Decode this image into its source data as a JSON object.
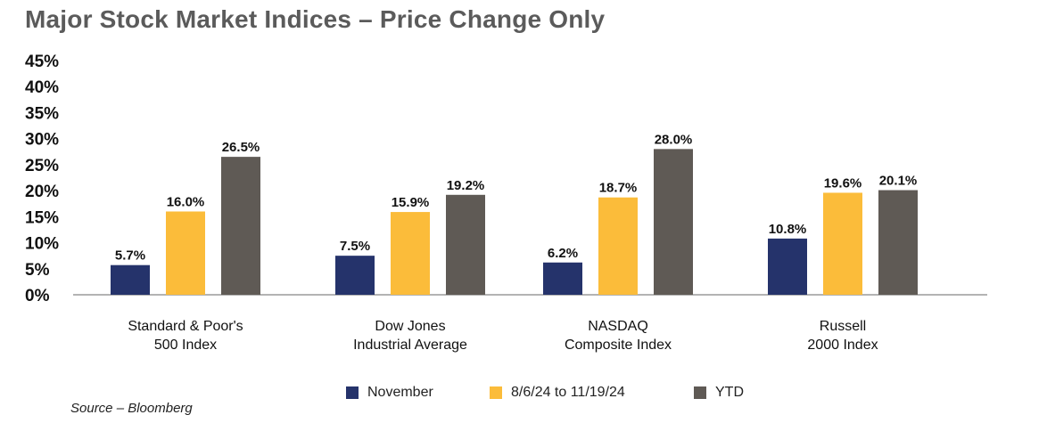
{
  "chart_data": {
    "type": "bar",
    "title": "Major Stock Market Indices – Price Change Only",
    "categories": [
      [
        "Standard & Poor's",
        "500 Index"
      ],
      [
        "Dow Jones",
        "Industrial Average"
      ],
      [
        "NASDAQ",
        "Composite Index"
      ],
      [
        "Russell",
        "2000 Index"
      ]
    ],
    "series": [
      {
        "name": "November",
        "color": "#25336b",
        "values": [
          5.7,
          7.5,
          6.2,
          10.8
        ],
        "labels": [
          "5.7%",
          "7.5%",
          "6.2%",
          "10.8%"
        ]
      },
      {
        "name": "8/6/24 to 11/19/24",
        "color": "#fbbc3a",
        "values": [
          16.0,
          15.9,
          18.7,
          19.6
        ],
        "labels": [
          "16.0%",
          "15.9%",
          "18.7%",
          "19.6%"
        ]
      },
      {
        "name": "YTD",
        "color": "#5f5a55",
        "values": [
          26.5,
          19.2,
          28.0,
          20.1
        ],
        "labels": [
          "26.5%",
          "19.2%",
          "28.0%",
          "20.1%"
        ]
      }
    ],
    "ylim": [
      0,
      45
    ],
    "yticks": [
      "0%",
      "5%",
      "10%",
      "15%",
      "20%",
      "25%",
      "30%",
      "35%",
      "40%",
      "45%"
    ],
    "ylabel": "",
    "xlabel": "",
    "legend_position": "bottom",
    "grid": false
  },
  "source": "Source – Bloomberg"
}
